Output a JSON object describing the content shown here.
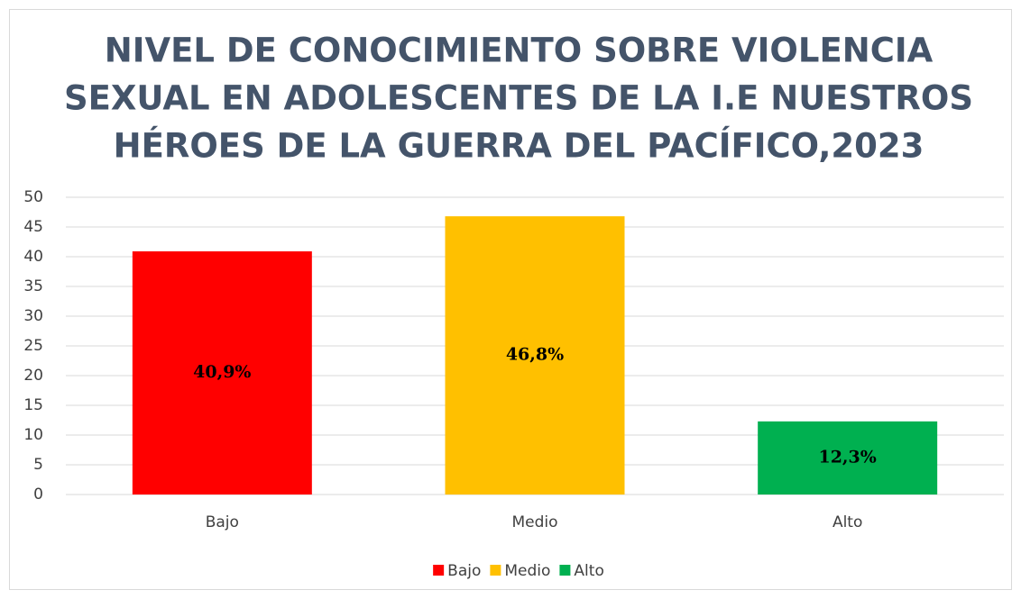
{
  "chart_data": {
    "type": "bar",
    "title": [
      "NIVEL DE CONOCIMIENTO SOBRE VIOLENCIA",
      "SEXUAL EN ADOLESCENTES DE LA I.E NUESTROS",
      "HÉROES DE LA GUERRA DEL PACÍFICO,2023"
    ],
    "categories": [
      "Bajo",
      "Medio",
      "Alto"
    ],
    "values": [
      40.9,
      46.8,
      12.3
    ],
    "value_labels": [
      "40,9%",
      "46,8%",
      "12,3%"
    ],
    "colors": [
      "#ff0000",
      "#ffc000",
      "#00b050"
    ],
    "ylim": [
      0,
      50
    ],
    "yticks": [
      0,
      5,
      10,
      15,
      20,
      25,
      30,
      35,
      40,
      45,
      50
    ],
    "grid": true,
    "legend": "bottom"
  }
}
